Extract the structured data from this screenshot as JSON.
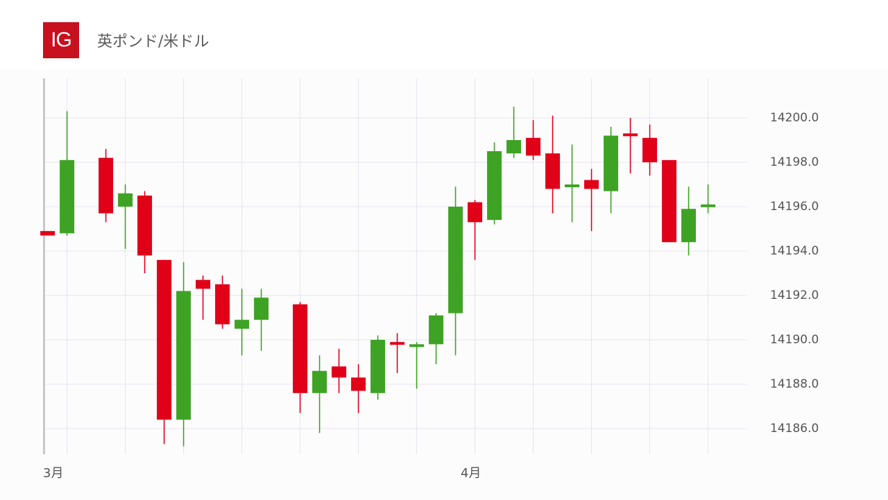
{
  "header": {
    "logo_text": "IG",
    "title": "英ポンド/米ドル"
  },
  "colors": {
    "up": "#3ea324",
    "down": "#e00018",
    "grid": "#e6e3ea",
    "axis": "#c8c8c8",
    "logo": "#c8101e"
  },
  "chart_data": {
    "type": "candlestick",
    "title": "英ポンド/米ドル",
    "xlabel": "",
    "ylabel": "",
    "ylim": [
      14185,
      14201.5
    ],
    "y_ticks": [
      "14200.0",
      "14198.0",
      "14196.0",
      "14194.0",
      "14192.0",
      "14190.0",
      "14188.0",
      "14186.0"
    ],
    "y_tick_values": [
      14200,
      14198,
      14196,
      14194,
      14192,
      14190,
      14188,
      14186
    ],
    "x_ticks": [
      {
        "label": "3月",
        "slot": 1
      },
      {
        "label": "4月",
        "slot": 22
      }
    ],
    "grid": true,
    "legend": "none",
    "candles": [
      {
        "slot": 0,
        "o": 14194.9,
        "h": 14194.9,
        "l": 14194.7,
        "c": 14194.7
      },
      {
        "slot": 1,
        "o": 14194.8,
        "h": 14200.3,
        "l": 14194.7,
        "c": 14198.1
      },
      {
        "slot": 3,
        "o": 14198.2,
        "h": 14198.6,
        "l": 14195.3,
        "c": 14195.7
      },
      {
        "slot": 4,
        "o": 14196.0,
        "h": 14197.0,
        "l": 14194.1,
        "c": 14196.6
      },
      {
        "slot": 5,
        "o": 14196.5,
        "h": 14196.7,
        "l": 14193.0,
        "c": 14193.8
      },
      {
        "slot": 6,
        "o": 14193.6,
        "h": 14193.6,
        "l": 14185.3,
        "c": 14186.4
      },
      {
        "slot": 7,
        "o": 14186.4,
        "h": 14193.5,
        "l": 14185.2,
        "c": 14192.2
      },
      {
        "slot": 8,
        "o": 14192.7,
        "h": 14192.9,
        "l": 14190.9,
        "c": 14192.3
      },
      {
        "slot": 9,
        "o": 14192.5,
        "h": 14192.9,
        "l": 14190.5,
        "c": 14190.7
      },
      {
        "slot": 10,
        "o": 14190.5,
        "h": 14192.3,
        "l": 14189.3,
        "c": 14190.9
      },
      {
        "slot": 11,
        "o": 14190.9,
        "h": 14192.3,
        "l": 14189.5,
        "c": 14191.9
      },
      {
        "slot": 13,
        "o": 14191.6,
        "h": 14191.7,
        "l": 14186.7,
        "c": 14187.6
      },
      {
        "slot": 14,
        "o": 14187.6,
        "h": 14189.3,
        "l": 14185.8,
        "c": 14188.6
      },
      {
        "slot": 15,
        "o": 14188.8,
        "h": 14189.6,
        "l": 14187.6,
        "c": 14188.3
      },
      {
        "slot": 16,
        "o": 14188.3,
        "h": 14188.9,
        "l": 14186.7,
        "c": 14187.7
      },
      {
        "slot": 17,
        "o": 14187.6,
        "h": 14190.2,
        "l": 14187.3,
        "c": 14190.0
      },
      {
        "slot": 18,
        "o": 14189.9,
        "h": 14190.3,
        "l": 14188.5,
        "c": 14189.8
      },
      {
        "slot": 19,
        "o": 14189.7,
        "h": 14189.9,
        "l": 14187.8,
        "c": 14189.8
      },
      {
        "slot": 20,
        "o": 14189.8,
        "h": 14191.2,
        "l": 14188.9,
        "c": 14191.1
      },
      {
        "slot": 21,
        "o": 14191.2,
        "h": 14196.9,
        "l": 14189.3,
        "c": 14196.0
      },
      {
        "slot": 22,
        "o": 14196.2,
        "h": 14196.3,
        "l": 14193.6,
        "c": 14195.3
      },
      {
        "slot": 23,
        "o": 14195.4,
        "h": 14198.9,
        "l": 14195.2,
        "c": 14198.5
      },
      {
        "slot": 24,
        "o": 14198.4,
        "h": 14200.5,
        "l": 14198.2,
        "c": 14199.0
      },
      {
        "slot": 25,
        "o": 14199.1,
        "h": 14199.9,
        "l": 14198.1,
        "c": 14198.3
      },
      {
        "slot": 26,
        "o": 14198.4,
        "h": 14200.1,
        "l": 14195.7,
        "c": 14196.8
      },
      {
        "slot": 27,
        "o": 14196.9,
        "h": 14198.8,
        "l": 14195.3,
        "c": 14197.0
      },
      {
        "slot": 28,
        "o": 14197.2,
        "h": 14197.7,
        "l": 14194.9,
        "c": 14196.8
      },
      {
        "slot": 29,
        "o": 14196.7,
        "h": 14199.6,
        "l": 14195.7,
        "c": 14199.2
      },
      {
        "slot": 30,
        "o": 14199.3,
        "h": 14200.0,
        "l": 14197.5,
        "c": 14199.2
      },
      {
        "slot": 31,
        "o": 14199.1,
        "h": 14199.7,
        "l": 14197.4,
        "c": 14198.0
      },
      {
        "slot": 32,
        "o": 14198.1,
        "h": 14198.1,
        "l": 14194.4,
        "c": 14194.4
      },
      {
        "slot": 33,
        "o": 14194.4,
        "h": 14196.9,
        "l": 14193.8,
        "c": 14195.9
      },
      {
        "slot": 34,
        "o": 14196.0,
        "h": 14197.0,
        "l": 14195.7,
        "c": 14196.1
      }
    ]
  }
}
